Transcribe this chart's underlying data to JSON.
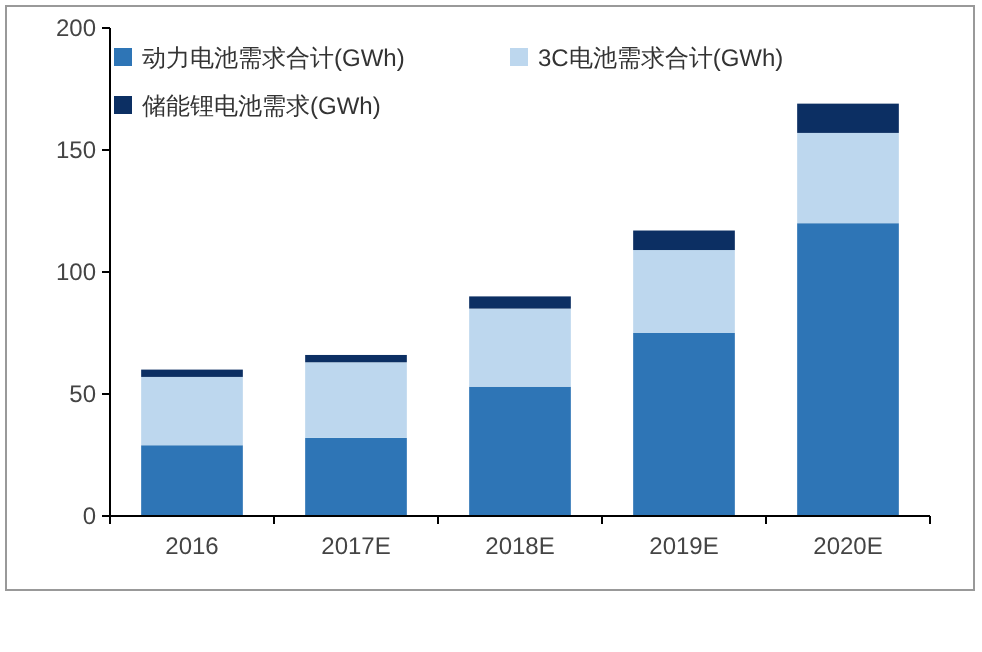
{
  "chart_data": {
    "type": "bar",
    "stacked": true,
    "categories": [
      "2016",
      "2017E",
      "2018E",
      "2019E",
      "2020E"
    ],
    "series": [
      {
        "name": "动力电池需求合计(GWh)",
        "color": "#2e75b6",
        "values": [
          29,
          32,
          53,
          75,
          120
        ]
      },
      {
        "name": "3C电池需求合计(GWh)",
        "color": "#bdd7ee",
        "values": [
          28,
          31,
          32,
          34,
          37
        ]
      },
      {
        "name": "储能锂电池需求(GWh)",
        "color": "#0c2f63",
        "values": [
          3,
          3,
          5,
          8,
          12
        ]
      }
    ],
    "ylim": [
      0,
      200
    ],
    "yticks": [
      0,
      50,
      100,
      150,
      200
    ],
    "legend": "top left"
  }
}
